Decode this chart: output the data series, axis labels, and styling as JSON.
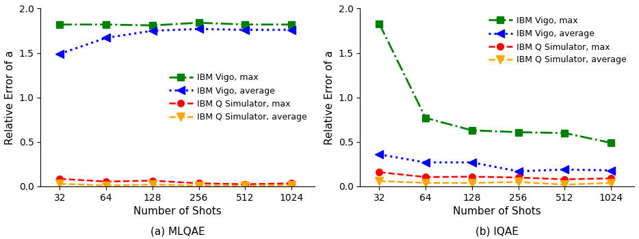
{
  "shots": [
    32,
    64,
    128,
    256,
    512,
    1024
  ],
  "panel_a": {
    "title": "(a) MLQAE",
    "vigo_max": [
      1.82,
      1.82,
      1.81,
      1.84,
      1.82,
      1.82
    ],
    "vigo_avg": [
      1.49,
      1.67,
      1.75,
      1.77,
      1.76,
      1.76
    ],
    "sim_max": [
      0.085,
      0.055,
      0.065,
      0.035,
      0.025,
      0.035
    ],
    "sim_avg": [
      0.03,
      0.01,
      0.02,
      0.01,
      0.005,
      0.015
    ]
  },
  "panel_b": {
    "title": "(b) IQAE",
    "vigo_max": [
      1.83,
      0.77,
      0.63,
      0.61,
      0.6,
      0.49
    ],
    "vigo_avg": [
      0.36,
      0.27,
      0.27,
      0.17,
      0.19,
      0.18
    ],
    "sim_max": [
      0.16,
      0.105,
      0.11,
      0.1,
      0.08,
      0.09
    ],
    "sim_avg": [
      0.06,
      0.04,
      0.04,
      0.05,
      0.02,
      0.04
    ]
  },
  "colors": {
    "vigo_max": "#008000",
    "vigo_avg": "#0000ff",
    "sim_max": "#ff0000",
    "sim_avg": "#ffa500"
  },
  "ylabel": "Relative Error of a",
  "xlabel": "Number of Shots",
  "ylim": [
    0.0,
    2.0
  ],
  "yticks": [
    0.0,
    0.5,
    1.0,
    1.5,
    2.0
  ],
  "legend_labels": [
    "IBM Vigo, max",
    "IBM Vigo, average",
    "IBM Q Simulator, max",
    "IBM Q Simulator, average"
  ],
  "legend_loc_a": "center right",
  "legend_loc_b": "upper right",
  "linewidth_dashdot": 2.0,
  "linewidth_dot": 2.2,
  "linewidth_dash": 1.8,
  "markersize_sq": 7,
  "markersize_tri": 8,
  "markersize_circ": 7,
  "markersize_tridown": 8
}
